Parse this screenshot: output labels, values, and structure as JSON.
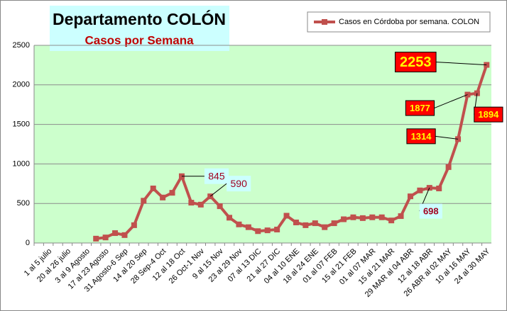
{
  "chart_data": {
    "type": "line",
    "title": "Departamento COLÓN",
    "subtitle": "Casos por Semana",
    "categories": [
      null,
      "1 al 5 julio",
      null,
      "20 al 26 julio",
      null,
      "3 al 9 Agosto",
      null,
      "17 al 23 Agosto",
      null,
      "31 Agosto-6 Sep",
      null,
      "14 al 20 Sep",
      null,
      "28 Sep-4 Oct",
      null,
      "12 al 18 Oct",
      null,
      "26 Oct-1 Nov",
      null,
      "9 al 15 Nov",
      null,
      "23 al 29 Nov",
      null,
      "07 al 13 DIC",
      null,
      "21 al 27 DIC",
      null,
      "04 al 10 ENE",
      null,
      "18 al 24 ENE",
      null,
      "01 al 07 FEB",
      null,
      "15 al 21 FEB",
      null,
      "01 al 07 MAR",
      null,
      "15 al 21 MAR",
      null,
      "29 MAR al 04 ABR",
      null,
      "12 al 18 ABR",
      null,
      "26 ABR al 02 MAY",
      null,
      "10 al 16 MAY",
      null,
      "24 al 30 MAY"
    ],
    "series": [
      {
        "name": "Casos en Córdoba por semana. COLON",
        "color": "#c0504d",
        "values": [
          null,
          null,
          null,
          null,
          null,
          null,
          55,
          70,
          125,
          100,
          225,
          535,
          690,
          575,
          635,
          845,
          510,
          485,
          590,
          465,
          320,
          235,
          200,
          150,
          160,
          170,
          345,
          260,
          225,
          250,
          200,
          250,
          300,
          325,
          315,
          325,
          325,
          285,
          340,
          590,
          665,
          698,
          690,
          960,
          1314,
          1877,
          1894,
          2253
        ],
        "value_labels": [
          null,
          null,
          null,
          null,
          null,
          null,
          null,
          null,
          null,
          null,
          null,
          null,
          null,
          null,
          null,
          "845",
          null,
          null,
          "590",
          null,
          null,
          null,
          null,
          null,
          null,
          null,
          null,
          null,
          null,
          null,
          null,
          null,
          null,
          null,
          null,
          null,
          null,
          null,
          null,
          null,
          null,
          "698",
          null,
          null,
          "1314",
          "1877",
          "1894",
          "2253"
        ]
      }
    ],
    "ylim": [
      0,
      2500
    ],
    "yticks": [
      0,
      500,
      1000,
      1500,
      2000,
      2500
    ],
    "grid": true,
    "legend": "top-right"
  }
}
